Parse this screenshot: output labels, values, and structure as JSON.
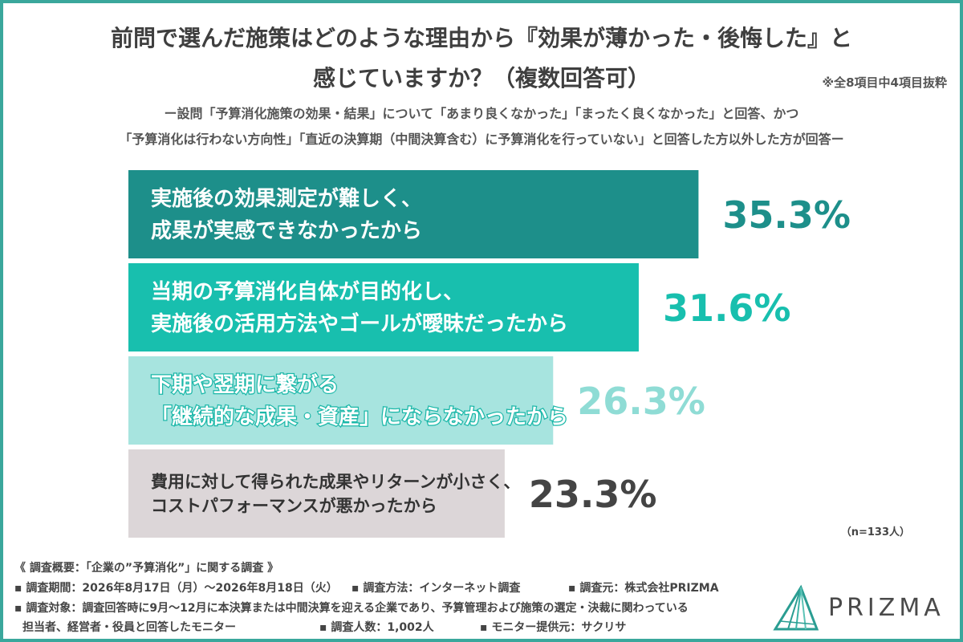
{
  "header": {
    "title_line1": "前問で選んだ施策はどのような理由から『効果が薄かった・後悔した』と",
    "title_line2": "感じていますか？（複数回答可）",
    "note": "※全8項目中4項目抜粋",
    "subtitle_line1": "ー設問「予算消化施策の効果・結果」について「あまり良くなかった」「まったく良くなかった」と回答、かつ",
    "subtitle_line2": "「予算消化は行わない方向性」「直近の決算期（中間決算含む）に予算消化を行っていない」と回答した方以外した方が回答ー"
  },
  "chart_data": {
    "type": "bar",
    "orientation": "horizontal",
    "categories": [
      [
        "実施後の効果測定が難しく、",
        "成果が実感できなかったから"
      ],
      [
        "当期の予算消化自体が目的化し、",
        "実施後の活用方法やゴールが曖昧だったから"
      ],
      [
        "下期や翌期に繋がる",
        "「継続的な成果・資産」にならなかったから"
      ],
      [
        "費用に対して得られた成果やリターンが小さく、",
        "コストパフォーマンスが悪かったから"
      ]
    ],
    "values": [
      35.3,
      31.6,
      26.3,
      23.3
    ],
    "value_labels": [
      "35.3%",
      "31.6%",
      "26.3%",
      "23.3%"
    ],
    "colors": [
      "#1d8f8a",
      "#18bfae",
      "#a7e4df",
      "#dcd6d8"
    ],
    "label_colors": [
      "#ffffff",
      "#ffffff",
      "#ffffff",
      "#333333"
    ],
    "value_label_colors": [
      "#1d8f8a",
      "#18bfae",
      "#8fdcd5",
      "#444444"
    ],
    "xlim": [
      0,
      40
    ]
  },
  "n_label": "（n=133人）",
  "survey": {
    "heading": "《 調査概要：「企業の”予算消化”」に関する調査 》",
    "period": "▪ 調査期間：2026年8月17日（月）〜2026年8月18日（火）",
    "method": "▪ 調査方法：インターネット調査",
    "org": "▪ 調査元：株式会社PRIZMA",
    "target_line1": "▪ 調査対象：調査回答時に9月〜12月に本決算または中間決算を迎える企業であり、予算管理および施策の選定・決裁に関わっている",
    "target_line2": "担当者、経営者・役員と回答したモニター",
    "count": "▪ 調査人数：1,002人",
    "provider": "▪ モニター提供元：サクリサ"
  },
  "logo": {
    "text": "PRIZMA",
    "icon": "prizma-logo-icon"
  }
}
